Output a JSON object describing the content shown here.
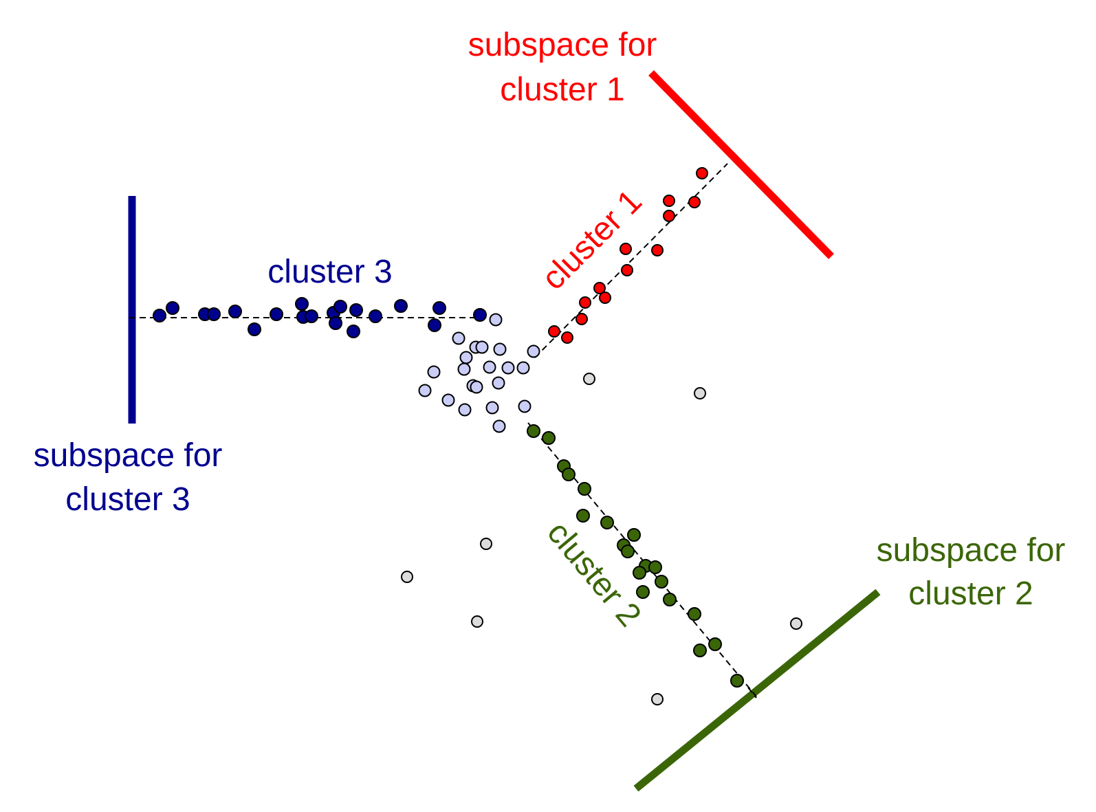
{
  "colors": {
    "cluster1": "#ff0000",
    "cluster2": "#3b6608",
    "cluster3": "#00008f",
    "shared": "#cacdf5",
    "noise": "#dcdcdc",
    "outline": "#000000"
  },
  "labels": {
    "subspace1_line1": "subspace for",
    "subspace1_line2": "cluster 1",
    "subspace2_line1": "subspace for",
    "subspace2_line2": "cluster 2",
    "subspace3_line1": "subspace for",
    "subspace3_line2": "cluster 3",
    "cluster1": "cluster 1",
    "cluster2": "cluster 2",
    "cluster3": "cluster 3"
  },
  "clusters": [
    {
      "id": "cluster-1",
      "color_key": "cluster1",
      "points": [
        [
          806,
          482
        ],
        [
          825,
          491
        ],
        [
          846,
          464
        ],
        [
          851,
          440
        ],
        [
          872,
          419
        ],
        [
          880,
          433
        ],
        [
          910,
          362
        ],
        [
          912,
          393
        ],
        [
          956,
          364
        ],
        [
          973,
          292
        ],
        [
          973,
          314
        ],
        [
          1010,
          294
        ],
        [
          1021,
          252
        ]
      ]
    },
    {
      "id": "cluster-2",
      "color_key": "cluster2",
      "points": [
        [
          776,
          627
        ],
        [
          798,
          637
        ],
        [
          820,
          678
        ],
        [
          827,
          690
        ],
        [
          850,
          711
        ],
        [
          848,
          750
        ],
        [
          883,
          760
        ],
        [
          922,
          778
        ],
        [
          907,
          793
        ],
        [
          913,
          802
        ],
        [
          939,
          823
        ],
        [
          953,
          825
        ],
        [
          930,
          833
        ],
        [
          935,
          861
        ],
        [
          962,
          846
        ],
        [
          974,
          872
        ],
        [
          1010,
          893
        ],
        [
          1040,
          937
        ],
        [
          1018,
          946
        ],
        [
          1072,
          990
        ]
      ]
    },
    {
      "id": "cluster-3",
      "color_key": "cluster3",
      "points": [
        [
          232,
          459
        ],
        [
          251,
          448
        ],
        [
          298,
          457
        ],
        [
          311,
          457
        ],
        [
          342,
          453
        ],
        [
          370,
          479
        ],
        [
          402,
          457
        ],
        [
          439,
          442
        ],
        [
          441,
          461
        ],
        [
          453,
          460
        ],
        [
          485,
          455
        ],
        [
          488,
          470
        ],
        [
          495,
          446
        ],
        [
          518,
          451
        ],
        [
          514,
          482
        ],
        [
          546,
          460
        ],
        [
          583,
          445
        ],
        [
          632,
          473
        ],
        [
          639,
          448
        ],
        [
          698,
          458
        ]
      ]
    },
    {
      "id": "shared-core",
      "color_key": "shared",
      "points": [
        [
          721,
          465
        ],
        [
          667,
          492
        ],
        [
          692,
          505
        ],
        [
          701,
          505
        ],
        [
          727,
          508
        ],
        [
          678,
          520
        ],
        [
          776,
          511
        ],
        [
          631,
          541
        ],
        [
          675,
          537
        ],
        [
          712,
          534
        ],
        [
          739,
          535
        ],
        [
          761,
          535
        ],
        [
          688,
          561
        ],
        [
          693,
          563
        ],
        [
          725,
          557
        ],
        [
          618,
          568
        ],
        [
          652,
          582
        ],
        [
          676,
          596
        ],
        [
          716,
          593
        ],
        [
          763,
          591
        ],
        [
          726,
          620
        ]
      ]
    },
    {
      "id": "noise",
      "color_key": "noise",
      "points": [
        [
          857,
          551
        ],
        [
          1018,
          572
        ],
        [
          707,
          791
        ],
        [
          592,
          839
        ],
        [
          694,
          904
        ],
        [
          1158,
          907
        ],
        [
          956,
          1017
        ]
      ]
    }
  ],
  "subspace_lines": [
    {
      "id": "cluster-1",
      "color_key": "cluster1"
    },
    {
      "id": "cluster-2",
      "color_key": "cluster2"
    },
    {
      "id": "cluster-3",
      "color_key": "cluster3"
    }
  ]
}
